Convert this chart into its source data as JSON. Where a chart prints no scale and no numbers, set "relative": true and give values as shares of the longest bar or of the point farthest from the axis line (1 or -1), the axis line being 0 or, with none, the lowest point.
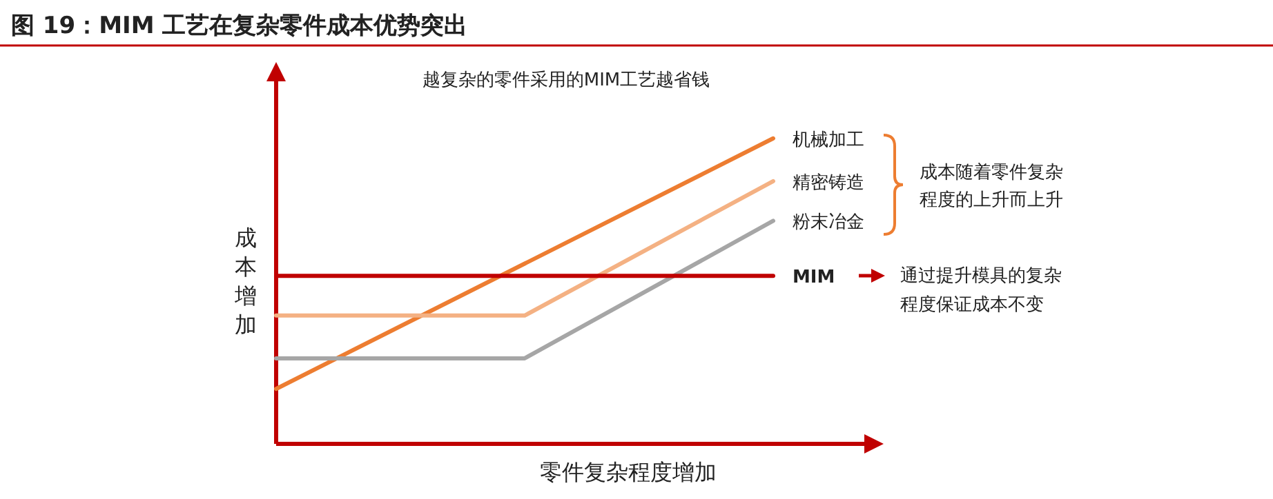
{
  "chart_data": {
    "type": "line",
    "title": "图 19：MIM 工艺在复杂零件成本优势突出",
    "subtitle": "越复杂的零件采用的MIM工艺越省钱",
    "xlabel": "零件复杂程度增加",
    "ylabel": "成本增加",
    "relative": true,
    "legend": "right",
    "marker": "none",
    "line_style": "solid",
    "categories": [
      null,
      null,
      null
    ],
    "series": [
      {
        "name": "机械加工",
        "color": "#ed7d31",
        "values": [
          0.18,
          0.59,
          1
        ]
      },
      {
        "name": "精密铸造",
        "color": "#f4b183",
        "values": [
          0.42,
          0.42,
          0.86
        ]
      },
      {
        "name": "粉末冶金",
        "color": "#a6a6a6",
        "values": [
          0.28,
          0.28,
          0.73
        ]
      },
      {
        "name": "MIM",
        "color": "#c00000",
        "values": [
          0.55,
          0.55,
          0.55
        ]
      }
    ],
    "annotations": [
      "成本随着零件复杂程度的上升而上升",
      "通过提升模具的复杂程度保证成本不变"
    ]
  }
}
